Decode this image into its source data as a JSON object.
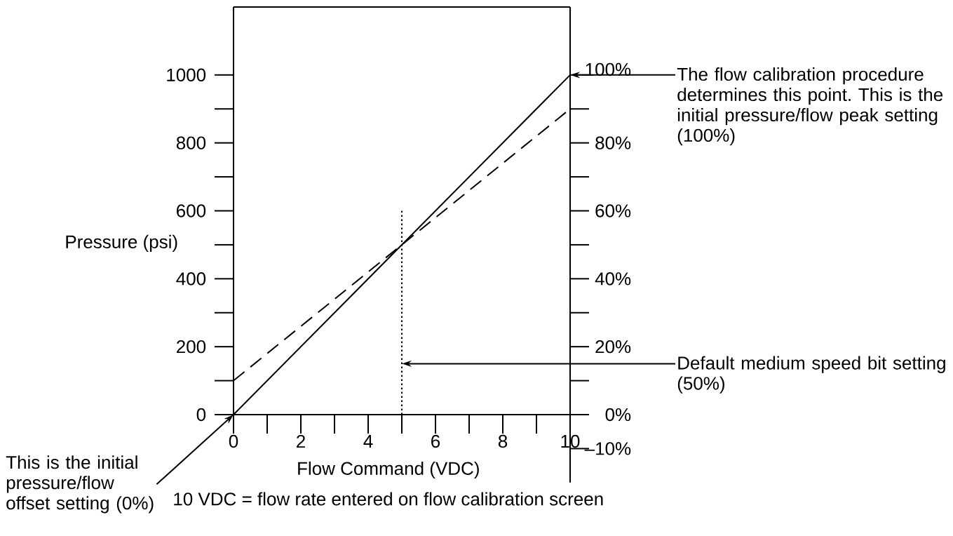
{
  "chart_data": {
    "type": "line",
    "xlabel": "Flow Command (VDC)",
    "ylabel": "Pressure (psi)",
    "x": [
      0,
      10
    ],
    "series": [
      {
        "color": "#000000",
        "values": [
          0,
          1000
        ],
        "line_style": "solid"
      },
      {
        "color": "#000000",
        "values": [
          100,
          900
        ],
        "line_style": "dashed"
      },
      {
        "color": "#000000",
        "x": [
          5,
          5
        ],
        "values": [
          0,
          600
        ],
        "line_style": "dotted"
      }
    ],
    "xlim": [
      0,
      10
    ],
    "ylim": [
      0,
      1200
    ],
    "y2lim": [
      -20,
      120
    ],
    "xticks": [
      0,
      2,
      4,
      6,
      8,
      10
    ],
    "yticks": [
      0,
      200,
      400,
      600,
      800,
      1000
    ],
    "y2ticks": [
      {
        "value": -10,
        "label": "–10%"
      },
      {
        "value": 0,
        "label": "0%"
      },
      {
        "value": 20,
        "label": "20%"
      },
      {
        "value": 40,
        "label": "40%"
      },
      {
        "value": 60,
        "label": "60%"
      },
      {
        "value": 80,
        "label": "80%"
      },
      {
        "value": 100,
        "label": "100%"
      }
    ],
    "annotations": [
      {
        "text": "The flow calibration procedure determines this point. This is the initial pressure/flow peak setting (100%)",
        "x": 10,
        "y": 1000
      },
      {
        "text": "Default medium speed bit setting (50%)",
        "x": 5,
        "y": 150
      },
      "This is the initial pressure/flow offset setting (0%)",
      "10 VDC = flow rate entered on flow calibration screen"
    ]
  }
}
